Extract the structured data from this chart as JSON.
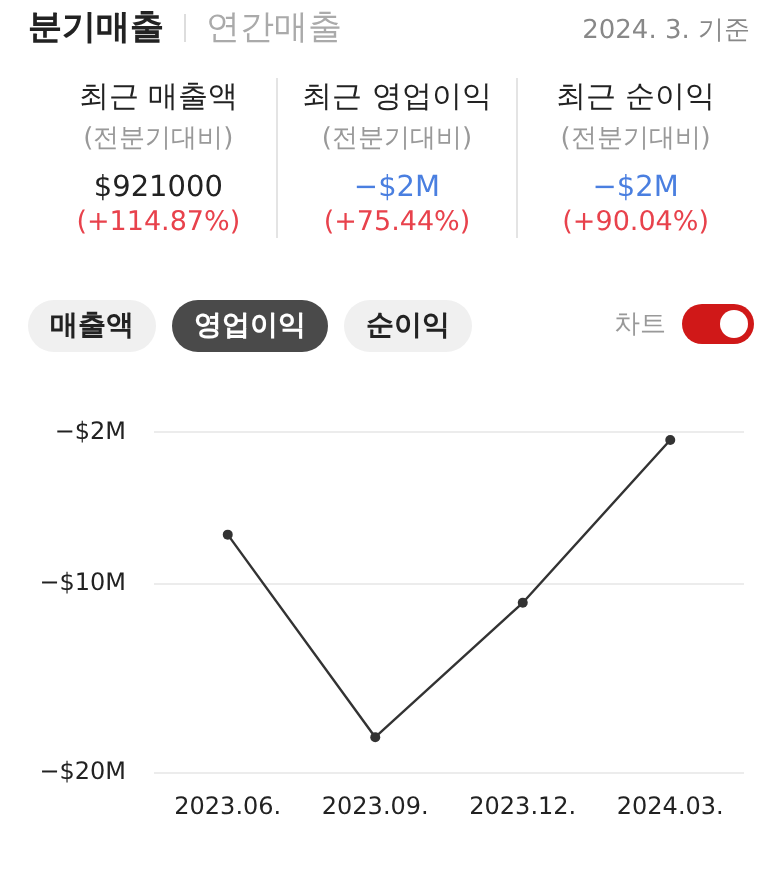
{
  "chart_data": {
    "type": "line",
    "annotations": [
      "분기매출",
      "연간매출",
      "2024. 3. 기준",
      "최근 매출액",
      "최근 영업이익",
      "최근 순이익",
      "(전분기대비)",
      "(전분기대비)",
      "(전분기대비)",
      "$921000",
      "−$2M",
      "−$2M",
      "(+114.87%)",
      "(+75.44%)",
      "(+90.04%)",
      "매출액",
      "영업이익",
      "순이익",
      "차트"
    ],
    "categories": [
      "2023.06.",
      "2023.09.",
      "2023.12.",
      "2024.03."
    ],
    "series": [
      {
        "color": "#333333",
        "values": [
          -7.4,
          -18.1,
          -11,
          -2.4
        ]
      }
    ],
    "ylim": [
      -20,
      -2
    ],
    "yticks": [
      {
        "value": -2,
        "label": "−$2M"
      },
      {
        "value": -10,
        "label": "−$10M"
      },
      {
        "value": -20,
        "label": "−$20M"
      }
    ],
    "grid": "y",
    "legend": false,
    "marker": "circle",
    "line_style": "solid"
  }
}
